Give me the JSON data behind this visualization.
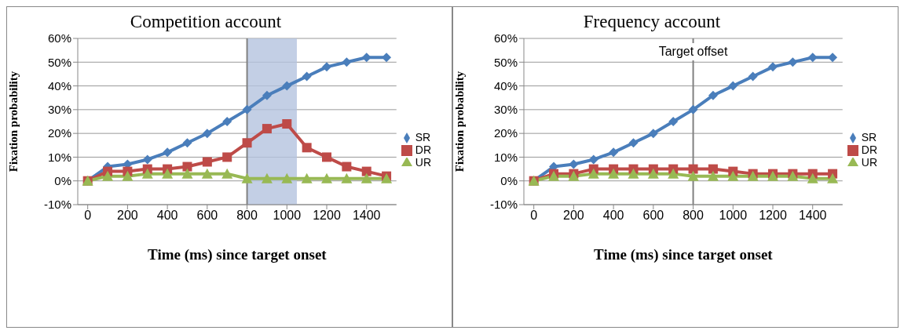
{
  "chart_data": [
    {
      "type": "line",
      "title": "Competition account",
      "xlabel": "Time (ms) since target onset",
      "ylabel": "Fixation probability",
      "x": [
        0,
        100,
        200,
        300,
        400,
        500,
        600,
        700,
        800,
        900,
        1000,
        1100,
        1200,
        1300,
        1400,
        1500
      ],
      "series": [
        {
          "name": "SR",
          "color": "#4a7ebb",
          "marker": "diamond",
          "values": [
            0,
            6,
            7,
            9,
            12,
            16,
            20,
            25,
            30,
            36,
            40,
            44,
            48,
            50,
            52,
            52
          ]
        },
        {
          "name": "DR",
          "color": "#be4b48",
          "marker": "square",
          "values": [
            0,
            4,
            4,
            5,
            5,
            6,
            8,
            10,
            16,
            22,
            24,
            14,
            10,
            6,
            4,
            2
          ]
        },
        {
          "name": "UR",
          "color": "#98b954",
          "marker": "triangle",
          "values": [
            0,
            2,
            2,
            3,
            3,
            3,
            3,
            3,
            1,
            1,
            1,
            1,
            1,
            1,
            1,
            1
          ]
        }
      ],
      "xlim": [
        -50,
        1550
      ],
      "xticks": [
        0,
        200,
        400,
        600,
        800,
        1000,
        1200,
        1400
      ],
      "ylim": [
        -10,
        60
      ],
      "yticks": [
        {
          "value": -10,
          "label": "-10%"
        },
        {
          "value": 0,
          "label": "0%"
        },
        {
          "value": 10,
          "label": "10%"
        },
        {
          "value": 20,
          "label": "20%"
        },
        {
          "value": 30,
          "label": "30%"
        },
        {
          "value": 40,
          "label": "40%"
        },
        {
          "value": 50,
          "label": "50%"
        },
        {
          "value": 60,
          "label": "60%"
        }
      ],
      "grid": "y",
      "legend": "right",
      "ref_lines": [
        {
          "axis": "x",
          "value": 800,
          "color": "#808080"
        }
      ],
      "bands": [
        {
          "axis": "x",
          "from": 800,
          "to": 1050,
          "color": "#b4c3df"
        }
      ]
    },
    {
      "type": "line",
      "title": "Frequency account",
      "xlabel": "Time (ms) since target onset",
      "ylabel": "Fixation probability",
      "x": [
        0,
        100,
        200,
        300,
        400,
        500,
        600,
        700,
        800,
        900,
        1000,
        1100,
        1200,
        1300,
        1400,
        1500
      ],
      "series": [
        {
          "name": "SR",
          "color": "#4a7ebb",
          "marker": "diamond",
          "values": [
            0,
            6,
            7,
            9,
            12,
            16,
            20,
            25,
            30,
            36,
            40,
            44,
            48,
            50,
            52,
            52
          ]
        },
        {
          "name": "DR",
          "color": "#be4b48",
          "marker": "square",
          "values": [
            0,
            3,
            3,
            5,
            5,
            5,
            5,
            5,
            5,
            5,
            4,
            3,
            3,
            3,
            3,
            3
          ]
        },
        {
          "name": "UR",
          "color": "#98b954",
          "marker": "triangle",
          "values": [
            0,
            2,
            2,
            3,
            3,
            3,
            3,
            3,
            2,
            2,
            2,
            2,
            2,
            2,
            1,
            1
          ]
        }
      ],
      "xlim": [
        -50,
        1550
      ],
      "xticks": [
        0,
        200,
        400,
        600,
        800,
        1000,
        1200,
        1400
      ],
      "ylim": [
        -10,
        60
      ],
      "yticks": [
        {
          "value": -10,
          "label": "-10%"
        },
        {
          "value": 0,
          "label": "0%"
        },
        {
          "value": 10,
          "label": "10%"
        },
        {
          "value": 20,
          "label": "20%"
        },
        {
          "value": 30,
          "label": "30%"
        },
        {
          "value": 40,
          "label": "40%"
        },
        {
          "value": 50,
          "label": "50%"
        },
        {
          "value": 60,
          "label": "60%"
        }
      ],
      "grid": "y",
      "legend": "right",
      "ref_lines": [
        {
          "axis": "x",
          "value": 800,
          "label": "Target offset",
          "color": "#808080"
        }
      ]
    }
  ]
}
